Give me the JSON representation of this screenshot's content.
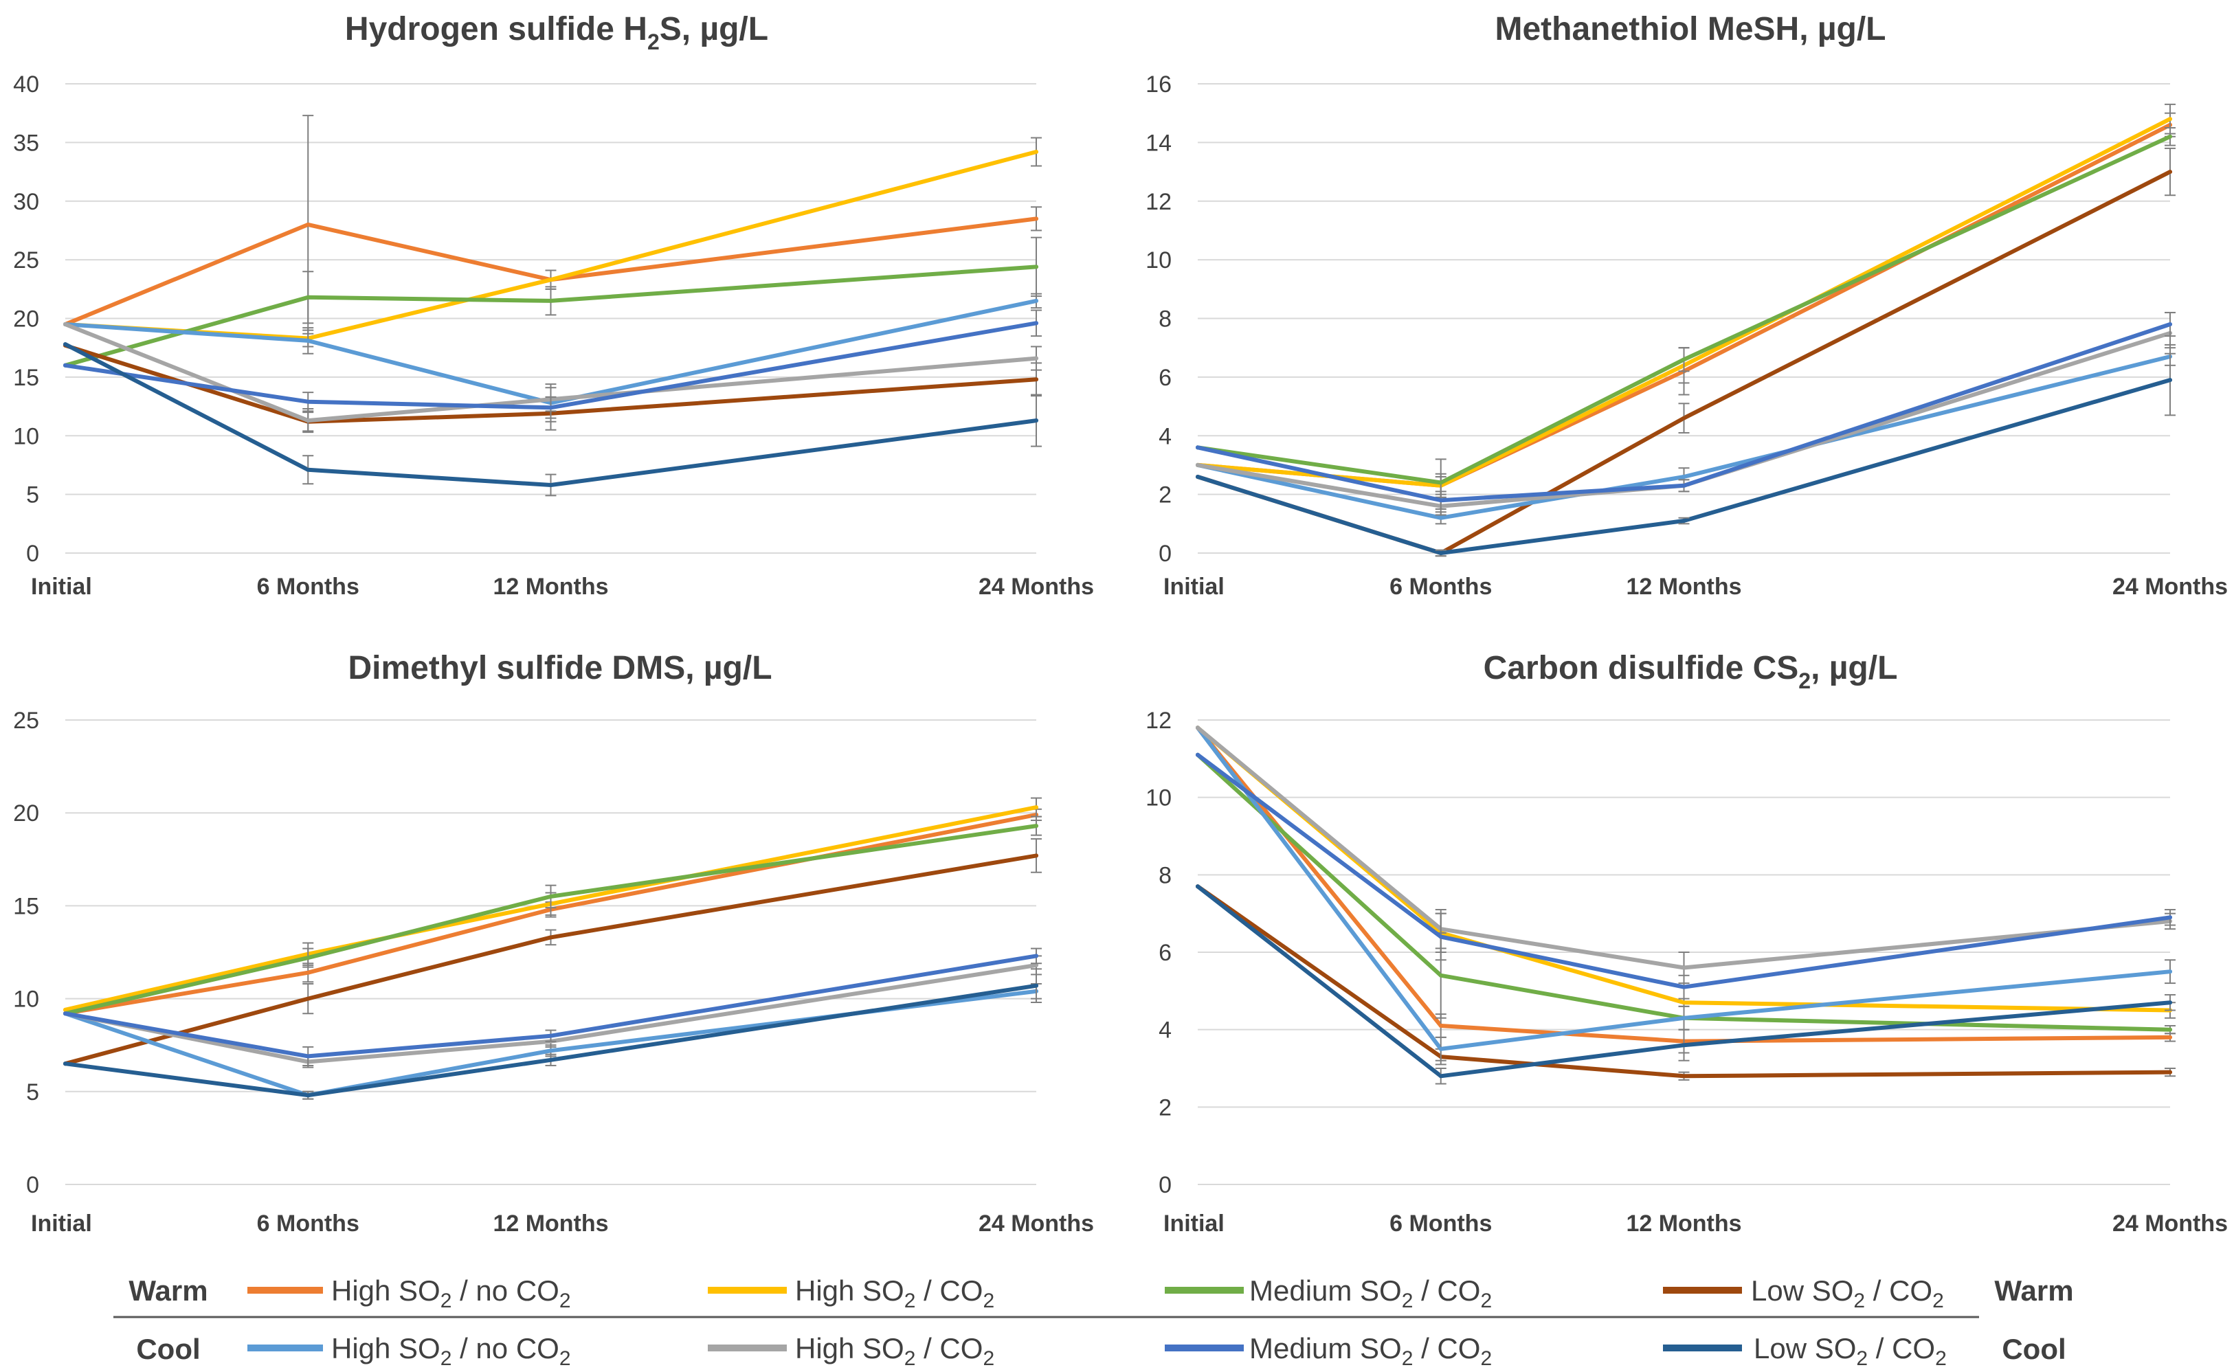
{
  "chart_data": [
    {
      "type": "line",
      "title_main": "Hydrogen sulfide H",
      "title_sub": "2",
      "title_rest": "S, µg/L",
      "categories": [
        "Initial",
        "6 Months",
        "12 Months",
        "24 Months"
      ],
      "x": [
        0,
        6,
        12,
        24
      ],
      "ylim": [
        0,
        40
      ],
      "yticks": [
        "0",
        "5",
        "10",
        "15",
        "20",
        "25",
        "30",
        "35",
        "40"
      ],
      "grid": true,
      "series": [
        {
          "name": "Warm High SO2 / no CO2",
          "color": "#ED7D31",
          "values": [
            19.5,
            28.0,
            23.3,
            28.5
          ],
          "errors": [
            0,
            9.3,
            0.8,
            1.0
          ]
        },
        {
          "name": "Warm High SO2 / CO2",
          "color": "#FFC000",
          "values": [
            19.5,
            18.3,
            23.3,
            34.2
          ],
          "errors": [
            0,
            0.7,
            0.8,
            1.2
          ]
        },
        {
          "name": "Warm Medium SO2 / CO2",
          "color": "#70AD47",
          "values": [
            16.0,
            21.8,
            21.5,
            24.4
          ],
          "errors": [
            0,
            2.2,
            1.2,
            2.5
          ]
        },
        {
          "name": "Warm Low SO2 / CO2",
          "color": "#9E480E",
          "values": [
            17.7,
            11.2,
            11.9,
            14.8
          ],
          "errors": [
            0,
            0.8,
            1.4,
            1.4
          ]
        },
        {
          "name": "Cool High SO2 / no CO2",
          "color": "#5B9BD5",
          "values": [
            19.5,
            18.1,
            12.8,
            21.5
          ],
          "errors": [
            0,
            1.1,
            1.6,
            0.6
          ]
        },
        {
          "name": "Cool High SO2 / CO2",
          "color": "#A5A5A5",
          "values": [
            19.5,
            11.3,
            13.1,
            16.6
          ],
          "errors": [
            0,
            1.0,
            1.0,
            1.0
          ]
        },
        {
          "name": "Cool Medium SO2 / CO2",
          "color": "#4472C4",
          "values": [
            16.0,
            12.9,
            12.4,
            19.6
          ],
          "errors": [
            0,
            0.8,
            0.9,
            1.1
          ]
        },
        {
          "name": "Cool Low SO2 / CO2",
          "color": "#255E91",
          "values": [
            17.8,
            7.1,
            5.8,
            11.3
          ],
          "errors": [
            0,
            1.2,
            0.9,
            2.2
          ]
        }
      ]
    },
    {
      "type": "line",
      "title_main": "Methanethiol MeSH, µg/L",
      "title_sub": "",
      "title_rest": "",
      "categories": [
        "Initial",
        "6 Months",
        "12 Months",
        "24 Months"
      ],
      "x": [
        0,
        6,
        12,
        24
      ],
      "ylim": [
        0,
        16
      ],
      "yticks": [
        "0",
        "2",
        "4",
        "6",
        "8",
        "10",
        "12",
        "14",
        "16"
      ],
      "grid": true,
      "series": [
        {
          "name": "Warm High SO2 / no CO2",
          "color": "#ED7D31",
          "values": [
            3.0,
            2.3,
            6.2,
            14.6
          ],
          "errors": [
            0,
            0.4,
            0.8,
            0.4
          ]
        },
        {
          "name": "Warm High SO2 / CO2",
          "color": "#FFC000",
          "values": [
            3.0,
            2.3,
            6.4,
            14.8
          ],
          "errors": [
            0,
            0.3,
            0.6,
            0.5
          ]
        },
        {
          "name": "Warm Medium SO2 / CO2",
          "color": "#70AD47",
          "values": [
            3.6,
            2.4,
            6.6,
            14.2
          ],
          "errors": [
            0,
            0.8,
            0.4,
            0.3
          ]
        },
        {
          "name": "Warm Low SO2 / CO2",
          "color": "#9E480E",
          "values": [
            2.6,
            0.0,
            4.6,
            13.0
          ],
          "errors": [
            0,
            0.1,
            0.5,
            0.8
          ]
        },
        {
          "name": "Cool High SO2 / no CO2",
          "color": "#5B9BD5",
          "values": [
            3.0,
            1.2,
            2.6,
            6.7
          ],
          "errors": [
            0,
            0.2,
            0.3,
            0.3
          ]
        },
        {
          "name": "Cool High SO2 / CO2",
          "color": "#A5A5A5",
          "values": [
            3.0,
            1.6,
            2.3,
            7.5
          ],
          "errors": [
            0,
            0.3,
            0.2,
            0.7
          ]
        },
        {
          "name": "Cool Medium SO2 / CO2",
          "color": "#4472C4",
          "values": [
            3.6,
            1.8,
            2.3,
            7.8
          ],
          "errors": [
            0,
            0.3,
            0.2,
            0.4
          ]
        },
        {
          "name": "Cool Low SO2 / CO2",
          "color": "#255E91",
          "values": [
            2.6,
            0.0,
            1.1,
            5.9
          ],
          "errors": [
            0,
            0.1,
            0.1,
            1.2
          ]
        }
      ]
    },
    {
      "type": "line",
      "title_main": "Dimethyl sulfide DMS, µg/L",
      "title_sub": "",
      "title_rest": "",
      "categories": [
        "Initial",
        "6 Months",
        "12 Months",
        "24 Months"
      ],
      "x": [
        0,
        6,
        12,
        24
      ],
      "ylim": [
        0,
        25
      ],
      "yticks": [
        "0",
        "5",
        "10",
        "15",
        "20",
        "25"
      ],
      "grid": true,
      "series": [
        {
          "name": "Warm High SO2 / no CO2",
          "color": "#ED7D31",
          "values": [
            9.2,
            11.4,
            14.8,
            19.9
          ],
          "errors": [
            0,
            0.5,
            0.4,
            0.3
          ]
        },
        {
          "name": "Warm High SO2 / CO2",
          "color": "#FFC000",
          "values": [
            9.4,
            12.4,
            15.1,
            20.3
          ],
          "errors": [
            0,
            0.6,
            0.6,
            0.5
          ]
        },
        {
          "name": "Warm Medium SO2 / CO2",
          "color": "#70AD47",
          "values": [
            9.2,
            12.2,
            15.5,
            19.3
          ],
          "errors": [
            0,
            0.5,
            0.6,
            0.5
          ]
        },
        {
          "name": "Warm Low SO2 / CO2",
          "color": "#9E480E",
          "values": [
            6.5,
            10.0,
            13.3,
            17.7
          ],
          "errors": [
            0,
            0.8,
            0.4,
            0.9
          ]
        },
        {
          "name": "Cool High SO2 / no CO2",
          "color": "#5B9BD5",
          "values": [
            9.2,
            4.8,
            7.2,
            10.4
          ],
          "errors": [
            0,
            0.2,
            0.3,
            0.4
          ]
        },
        {
          "name": "Cool High SO2 / CO2",
          "color": "#A5A5A5",
          "values": [
            9.2,
            6.6,
            7.7,
            11.8
          ],
          "errors": [
            0,
            0.3,
            0.3,
            0.5
          ]
        },
        {
          "name": "Cool Medium SO2 / CO2",
          "color": "#4472C4",
          "values": [
            9.2,
            6.9,
            8.0,
            12.3
          ],
          "errors": [
            0,
            0.5,
            0.3,
            0.4
          ]
        },
        {
          "name": "Cool Low SO2 / CO2",
          "color": "#255E91",
          "values": [
            6.5,
            4.8,
            6.7,
            10.7
          ],
          "errors": [
            0,
            0.2,
            0.3,
            0.9
          ]
        }
      ]
    },
    {
      "type": "line",
      "title_main": "Carbon disulfide CS",
      "title_sub": "2",
      "title_rest": ", µg/L",
      "categories": [
        "Initial",
        "6 Months",
        "12 Months",
        "24 Months"
      ],
      "x": [
        0,
        6,
        12,
        24
      ],
      "ylim": [
        0,
        12
      ],
      "yticks": [
        "0",
        "2",
        "4",
        "6",
        "8",
        "10",
        "12"
      ],
      "grid": true,
      "series": [
        {
          "name": "Warm High SO2 / no CO2",
          "color": "#ED7D31",
          "values": [
            11.8,
            4.1,
            3.7,
            3.8
          ],
          "errors": [
            0,
            0.3,
            0.3,
            0.1
          ]
        },
        {
          "name": "Warm High SO2 / CO2",
          "color": "#FFC000",
          "values": [
            11.8,
            6.5,
            4.7,
            4.5
          ],
          "errors": [
            0,
            0.5,
            0.4,
            0.2
          ]
        },
        {
          "name": "Warm Medium SO2 / CO2",
          "color": "#70AD47",
          "values": [
            11.1,
            5.4,
            4.3,
            4.0
          ],
          "errors": [
            0,
            1.1,
            0.3,
            0.1
          ]
        },
        {
          "name": "Warm Low SO2 / CO2",
          "color": "#9E480E",
          "values": [
            7.7,
            3.3,
            2.8,
            2.9
          ],
          "errors": [
            0,
            0.2,
            0.1,
            0.1
          ]
        },
        {
          "name": "Cool High SO2 / no CO2",
          "color": "#5B9BD5",
          "values": [
            11.8,
            3.5,
            4.3,
            5.5
          ],
          "errors": [
            0,
            0.3,
            0.3,
            0.3
          ]
        },
        {
          "name": "Cool High SO2 / CO2",
          "color": "#A5A5A5",
          "values": [
            11.8,
            6.6,
            5.6,
            6.8
          ],
          "errors": [
            0,
            0.5,
            0.4,
            0.2
          ]
        },
        {
          "name": "Cool Medium SO2 / CO2",
          "color": "#4472C4",
          "values": [
            11.1,
            6.4,
            5.1,
            6.9
          ],
          "errors": [
            0,
            0.6,
            0.3,
            0.2
          ]
        },
        {
          "name": "Cool Low SO2 / CO2",
          "color": "#255E91",
          "values": [
            7.7,
            2.8,
            3.6,
            4.7
          ],
          "errors": [
            0,
            0.2,
            0.4,
            0.2
          ]
        }
      ]
    }
  ],
  "legend": {
    "rows": [
      {
        "group": "Warm",
        "group_right": "Warm",
        "items": [
          {
            "label_a": "High SO",
            "sub_a": "2",
            "label_b": " / no CO",
            "sub_b": "2",
            "color": "#ED7D31"
          },
          {
            "label_a": "High SO",
            "sub_a": "2",
            "label_b": " / CO",
            "sub_b": "2",
            "color": "#FFC000"
          },
          {
            "label_a": "Medium SO",
            "sub_a": "2",
            "label_b": " / CO",
            "sub_b": "2",
            "color": "#70AD47"
          },
          {
            "label_a": "Low SO",
            "sub_a": "2",
            "label_b": " / CO",
            "sub_b": "2",
            "color": "#9E480E"
          }
        ]
      },
      {
        "group": "Cool",
        "group_right": "Cool",
        "items": [
          {
            "label_a": "High SO",
            "sub_a": "2",
            "label_b": " / no CO",
            "sub_b": "2",
            "color": "#5B9BD5"
          },
          {
            "label_a": "High SO",
            "sub_a": "2",
            "label_b": " / CO",
            "sub_b": "2",
            "color": "#A5A5A5"
          },
          {
            "label_a": "Medium SO",
            "sub_a": "2",
            "label_b": " / CO",
            "sub_b": "2",
            "color": "#4472C4"
          },
          {
            "label_a": "Low SO",
            "sub_a": "2",
            "label_b": " / CO",
            "sub_b": "2",
            "color": "#255E91"
          }
        ]
      }
    ]
  }
}
